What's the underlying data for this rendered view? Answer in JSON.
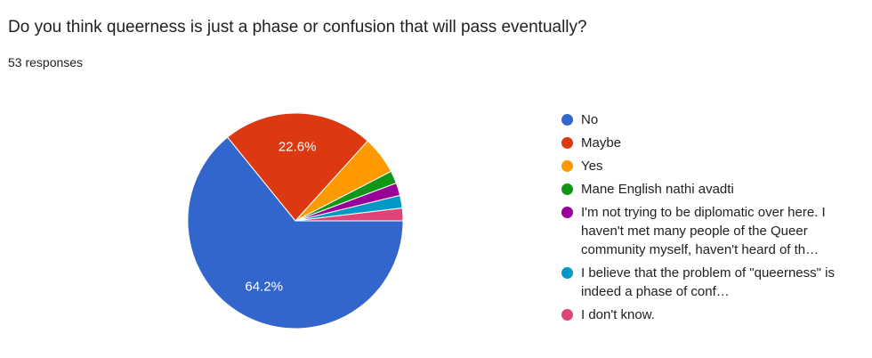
{
  "chart_data": {
    "type": "pie",
    "title": "Do you think queerness is just a phase or confusion that will pass eventually?",
    "subtitle": "53 responses",
    "categories": [
      "No",
      "Maybe",
      "Yes",
      "Mane English nathi avadti",
      "I'm not trying to be diplomatic over here. I haven't met many people of the Queer community myself, haven't heard of th…",
      "I believe that the problem of \"queerness\" is indeed a phase of conf…",
      "I don't know."
    ],
    "values": [
      64.2,
      22.6,
      5.7,
      1.9,
      1.9,
      1.9,
      1.9
    ],
    "value_labels": [
      "64.2%",
      "22.6%",
      null,
      null,
      null,
      null,
      null
    ],
    "colors": [
      "#3366cc",
      "#dc3912",
      "#ff9900",
      "#109618",
      "#990099",
      "#0099c6",
      "#dd4477"
    ]
  }
}
